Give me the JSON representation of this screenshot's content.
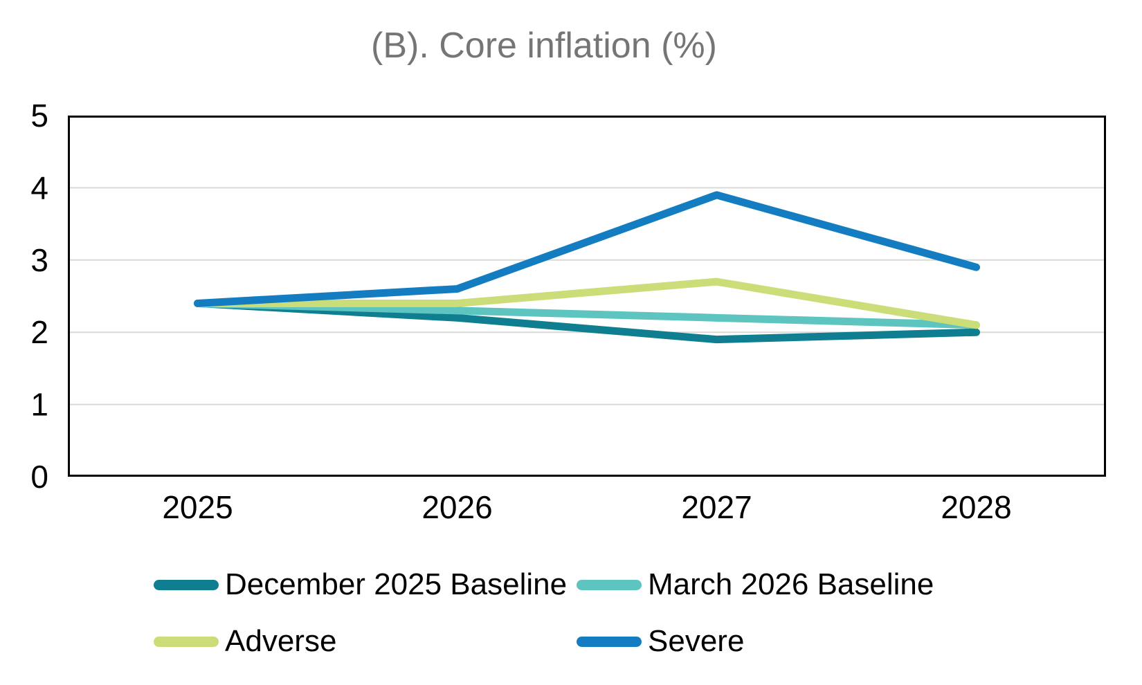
{
  "title": "(B). Core inflation (%)",
  "chart_data": {
    "type": "line",
    "title": "(B). Core inflation (%)",
    "title_color": "#757575",
    "categories": [
      "2025",
      "2026",
      "2027",
      "2028"
    ],
    "series": [
      {
        "name": "December 2025 Baseline",
        "color": "#0F7E91",
        "values": [
          2.4,
          2.2,
          1.9,
          2.0
        ]
      },
      {
        "name": "March 2026 Baseline",
        "color": "#5EC4C0",
        "values": [
          2.4,
          2.3,
          2.2,
          2.1
        ]
      },
      {
        "name": "Adverse",
        "color": "#CBDD78",
        "values": [
          2.4,
          2.4,
          2.7,
          2.1
        ]
      },
      {
        "name": "Severe",
        "color": "#147DC2",
        "values": [
          2.4,
          2.6,
          3.9,
          2.9
        ]
      }
    ],
    "xlabel": "",
    "ylabel": "",
    "ylim": [
      0,
      5
    ],
    "yticks": [
      0,
      1,
      2,
      3,
      4,
      5
    ],
    "grid": "horizontal",
    "gridline_color": "#D9D9D9",
    "axis_border_color": "#000000",
    "tick_label_color": "#000000",
    "legend_position": "bottom"
  }
}
